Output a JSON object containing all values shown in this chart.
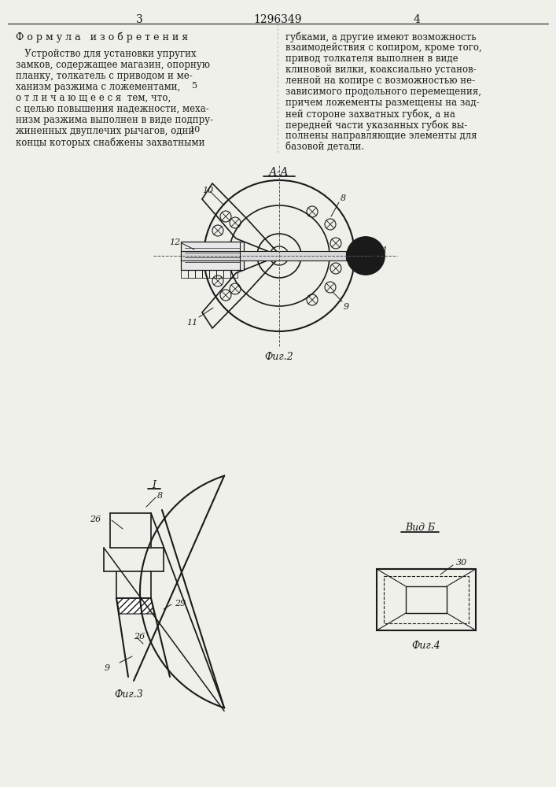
{
  "page_width": 7.07,
  "page_height": 10.0,
  "bg_color": "#f0f0ea",
  "line_color": "#1a1a1a",
  "title_patent": "1296349",
  "page_left": "3",
  "page_right": "4",
  "formula_header": "Ф о р м у л а   и з о б р е т е н и я",
  "left_text_lines": [
    "   Устройство для установки упругих",
    "замков, содержащее магазин, опорную",
    "планку, толкатель с приводом и ме-",
    "ханизм разжима с ложементами,",
    "о т л и ч а ю щ е е с я  тем, что,",
    "с целью повышения надежности, меха-",
    "низм разжима выполнен в виде подпру-",
    "жиненных двуплечих рычагов, одни",
    "концы которых снабжены захватными"
  ],
  "line_numbers": [
    "5",
    "10"
  ],
  "right_text_lines": [
    "губками, а другие имеют возможность",
    "взаимодействия с копиром, кроме того,",
    "привод толкателя выполнен в виде",
    "клиновой вилки, коаксиально установ-",
    "ленной на копире с возможностью не-",
    "зависимого продольного перемещения,",
    "причем ложементы размещены на зад-",
    "ней стороне захватных губок, а на",
    "передней части указанных губок вы-",
    "полнены направляющие элементы для",
    "базовой детали."
  ],
  "fig2_label": "А-А",
  "fig2_caption": "Фиг.2",
  "fig3_caption": "Фиг.3",
  "fig4_caption": "Фиг.4",
  "view_b_label": "Вид Б",
  "fig1_label": "I"
}
